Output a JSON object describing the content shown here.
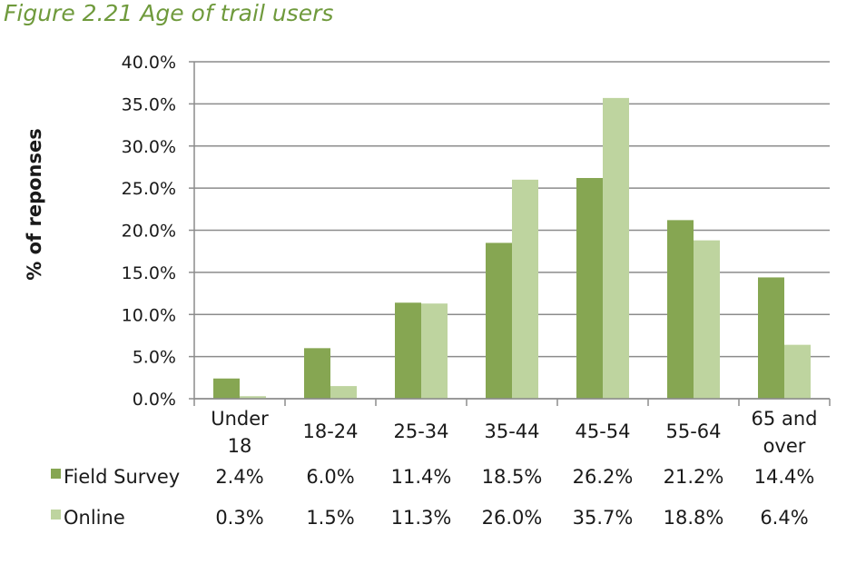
{
  "figure_title": "Figure 2.21 Age of trail users",
  "chart_data": {
    "type": "bar",
    "title": "",
    "xlabel": "",
    "ylabel": "% of reponses",
    "ylim": [
      0,
      40
    ],
    "yticks": [
      "0.0%",
      "5.0%",
      "10.0%",
      "15.0%",
      "20.0%",
      "25.0%",
      "30.0%",
      "35.0%",
      "40.0%"
    ],
    "grid": true,
    "legend_placement": "data-table-left",
    "categories": [
      [
        "Under",
        "18"
      ],
      [
        "18-24"
      ],
      [
        "25-34"
      ],
      [
        "35-44"
      ],
      [
        "45-54"
      ],
      [
        "55-64"
      ],
      [
        "65 and",
        "over"
      ]
    ],
    "series": [
      {
        "name": "Field Survey",
        "color": "#86a652",
        "values": [
          2.4,
          6.0,
          11.4,
          18.5,
          26.2,
          21.2,
          14.4
        ],
        "labels": [
          "2.4%",
          "6.0%",
          "11.4%",
          "18.5%",
          "26.2%",
          "21.2%",
          "14.4%"
        ]
      },
      {
        "name": "Online",
        "color": "#bed49f",
        "values": [
          0.3,
          1.5,
          11.3,
          26.0,
          35.7,
          18.8,
          6.4
        ],
        "labels": [
          "0.3%",
          "1.5%",
          "11.3%",
          "26.0%",
          "35.7%",
          "18.8%",
          "6.4%"
        ]
      }
    ]
  }
}
